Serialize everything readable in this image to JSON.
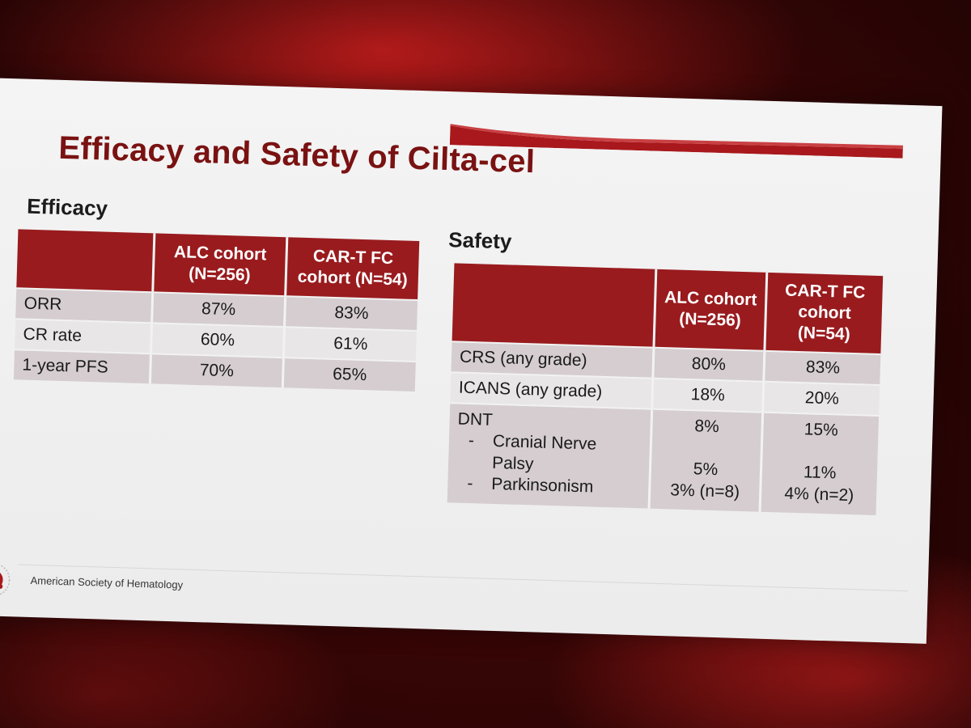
{
  "slide": {
    "title": "Efficacy and Safety of Cilta-cel",
    "footer_org": "American Society of Hematology"
  },
  "efficacy": {
    "heading": "Efficacy",
    "columns": [
      "ALC cohort (N=256)",
      "CAR-T FC cohort (N=54)"
    ],
    "rows": [
      {
        "label": "ORR",
        "alc": "87%",
        "fc": "83%"
      },
      {
        "label": "CR rate",
        "alc": "60%",
        "fc": "61%"
      },
      {
        "label": "1-year PFS",
        "alc": "70%",
        "fc": "65%"
      }
    ]
  },
  "safety": {
    "heading": "Safety",
    "columns": [
      "ALC cohort (N=256)",
      "CAR-T FC cohort (N=54)"
    ],
    "rows": [
      {
        "label": "CRS (any grade)",
        "alc": "80%",
        "fc": "83%"
      },
      {
        "label": "ICANS (any grade)",
        "alc": "18%",
        "fc": "20%"
      }
    ],
    "dnt": {
      "label": "DNT",
      "alc": "8%",
      "fc": "15%",
      "sub": [
        {
          "dash": "-",
          "label": "Cranial Nerve Palsy",
          "alc": "5%",
          "fc": "11%"
        },
        {
          "dash": "-",
          "label": "Parkinsonism",
          "alc": "3% (n=8)",
          "fc": "4% (n=2)"
        }
      ]
    }
  },
  "colors": {
    "brand_red": "#991b1e",
    "title_red": "#7a1212",
    "row_dark": "#d5cdcf",
    "row_light": "#e9e6e7"
  },
  "icons": {
    "logo": "ash-logo"
  }
}
